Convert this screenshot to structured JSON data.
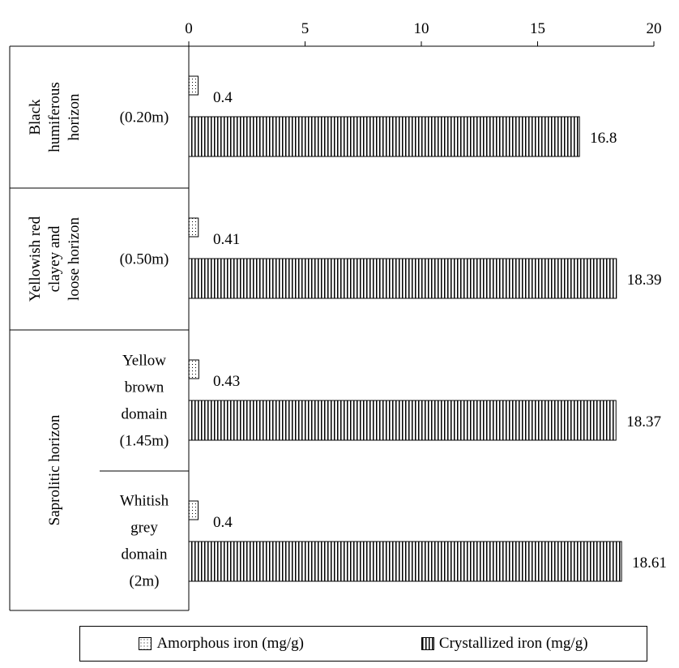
{
  "chart_data": {
    "type": "bar",
    "orientation": "horizontal",
    "x_ticks": [
      0,
      5,
      10,
      15,
      20
    ],
    "xlim": [
      0,
      20
    ],
    "axis_position": "top",
    "grid": false,
    "legend_position": "bottom",
    "groups": [
      {
        "label_lines": [
          "Black",
          "humiferous",
          "horizon"
        ],
        "items": [
          {
            "label_lines": [
              "(0.20m)"
            ],
            "amorphous": 0.4,
            "crystallized": 16.8,
            "amorphous_label": "0.4",
            "crystallized_label": "16.8"
          }
        ]
      },
      {
        "label_lines": [
          "Yellowish red",
          "clayey and",
          "loose horizon"
        ],
        "items": [
          {
            "label_lines": [
              "(0.50m)"
            ],
            "amorphous": 0.41,
            "crystallized": 18.39,
            "amorphous_label": "0.41",
            "crystallized_label": "18.39"
          }
        ]
      },
      {
        "label_lines": [
          "Saprolitic horizon"
        ],
        "items": [
          {
            "label_lines": [
              "Yellow",
              "brown",
              "domain",
              "(1.45m)"
            ],
            "amorphous": 0.43,
            "crystallized": 18.37,
            "amorphous_label": "0.43",
            "crystallized_label": "18.37"
          },
          {
            "label_lines": [
              "Whitish",
              "grey",
              "domain",
              "(2m)"
            ],
            "amorphous": 0.4,
            "crystallized": 18.61,
            "amorphous_label": "0.4",
            "crystallized_label": "18.61"
          }
        ]
      }
    ],
    "series": [
      {
        "name": "Amorphous iron (mg/g)",
        "pattern": "dotted"
      },
      {
        "name": "Crystallized iron (mg/g)",
        "pattern": "vertical-lines"
      }
    ]
  }
}
